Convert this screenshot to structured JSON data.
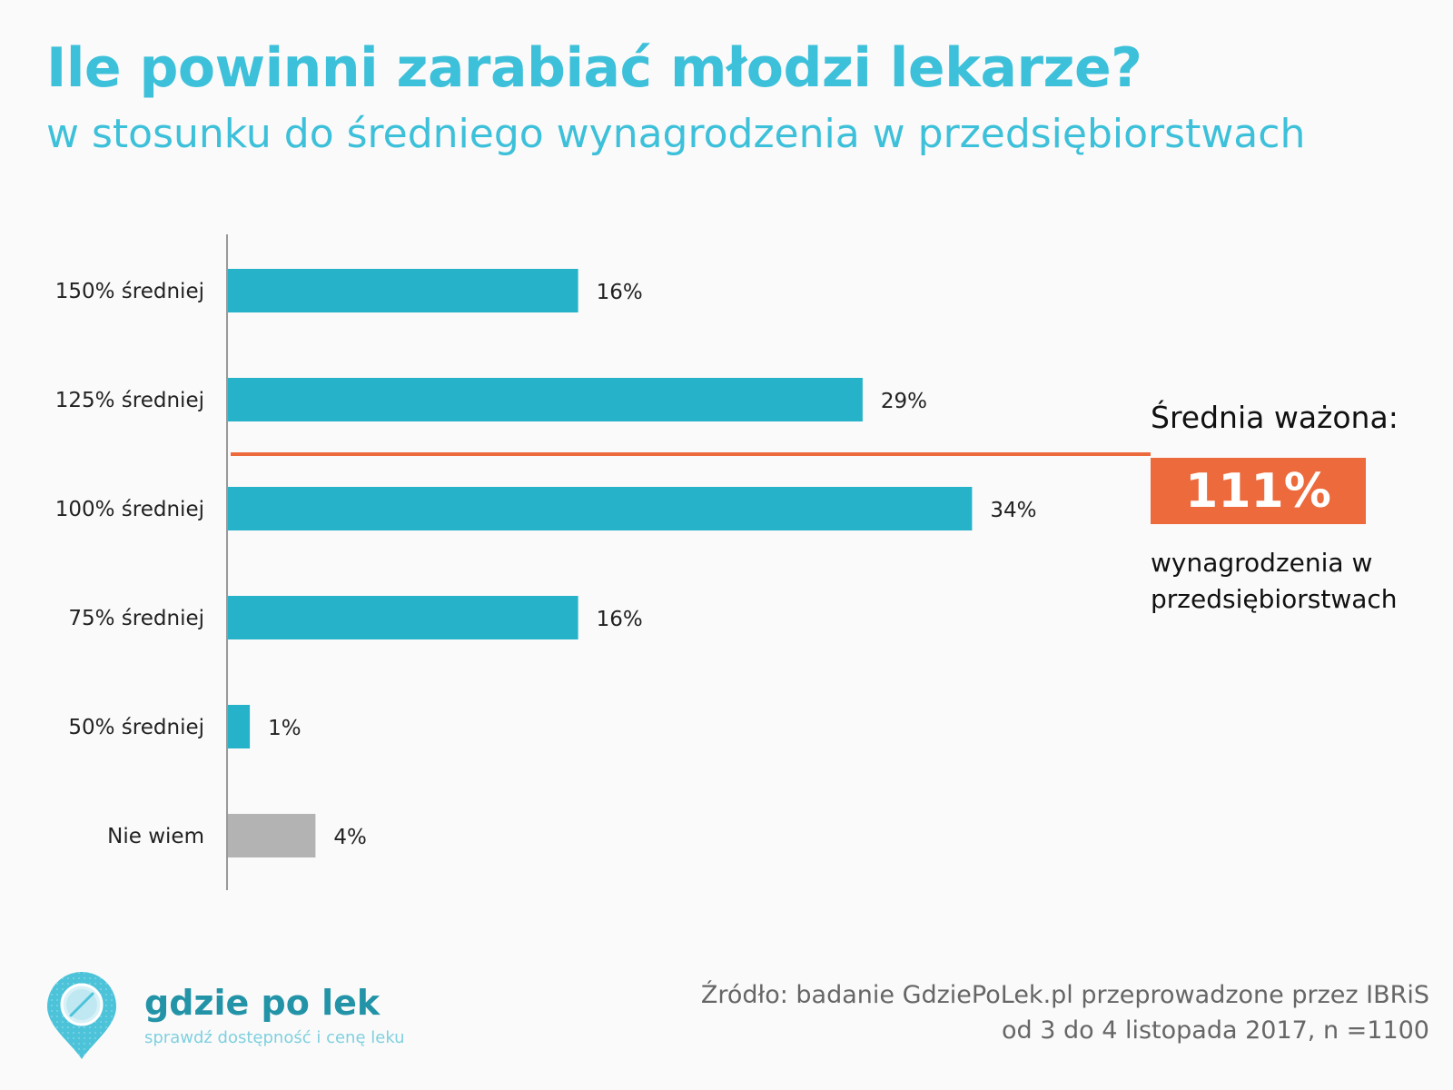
{
  "title": "Ile powinni zarabiać młodzi lekarze?",
  "subtitle": "w stosunku do średniego wynagrodzenia w przedsiębiorstwach",
  "chart_data": {
    "type": "bar",
    "orientation": "horizontal",
    "title": "Ile powinni zarabiać młodzi lekarze?",
    "subtitle": "w stosunku do średniego wynagrodzenia w przedsiębiorstwach",
    "categories": [
      "150% średniej",
      "125% średniej",
      "100% średniej",
      "75% średniej",
      "50% średniej",
      "Nie wiem"
    ],
    "values": [
      16,
      29,
      34,
      16,
      1,
      4
    ],
    "labels": [
      "16%",
      "29%",
      "34%",
      "16%",
      "1%",
      "4%"
    ],
    "xlim": [
      0,
      40
    ],
    "grid": false,
    "colors": {
      "bar": "#26b3c9",
      "bar_unknown": "#b3b3b3",
      "reference_line": "#ec6a3c"
    },
    "annotation": {
      "label": "Średnia ważona:",
      "value": "111%",
      "description": "wynagrodzenia w przedsiębiorstwach",
      "line_between": [
        "125% średniej",
        "100% średniej"
      ]
    }
  },
  "logo": {
    "name": "gdzie po lek",
    "tagline": "sprawdź dostępność i cenę leku"
  },
  "source": {
    "line1": "Źródło:  badanie GdziePoLek.pl przeprowadzone przez IBRiS",
    "line2": "od 3 do 4 listopada 2017, n =1100"
  },
  "colors": {
    "accent": "#3dc0d9",
    "highlight": "#ec6a3c"
  }
}
